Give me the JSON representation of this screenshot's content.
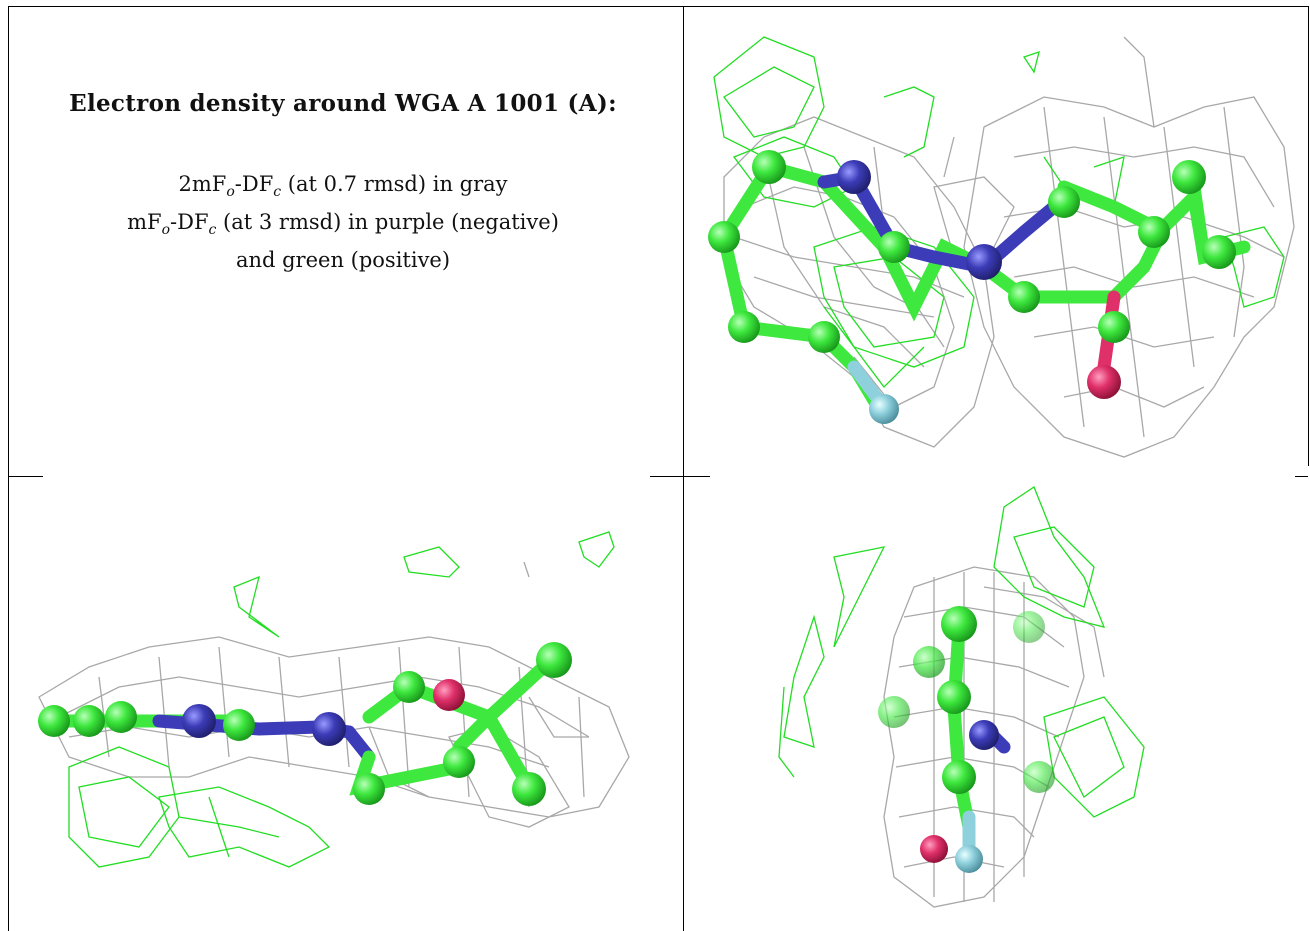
{
  "caption": {
    "title": "Electron density around WGA A 1001 (A):",
    "line1": {
      "pre": "2mF",
      "sub_o": "o",
      "mid": "-DF",
      "sub_c": "c",
      "post": " (at 0.7 rmsd) in gray"
    },
    "line2": {
      "pre": "mF",
      "sub_o": "o",
      "mid": "-DF",
      "sub_c": "c",
      "post": " (at 3 rmsd) in purple (negative)"
    },
    "line3": "and green (positive)"
  },
  "colors": {
    "carbon": "#3ee83e",
    "nitrogen": "#3c3cb8",
    "oxygen": "#e0306a",
    "fluorine": "#8fd0dd",
    "mesh_gray": "#a8a8a8",
    "mesh_green": "#22dd22"
  },
  "panels": [
    "view-top-right",
    "view-bottom-left",
    "view-bottom-right"
  ]
}
